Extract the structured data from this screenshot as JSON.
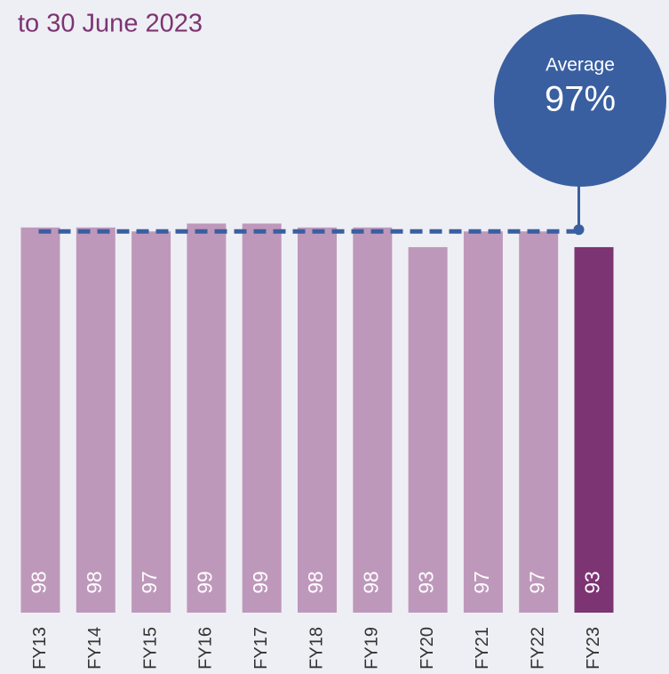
{
  "chart_data": {
    "type": "bar",
    "title": "to 30 June 2023",
    "categories": [
      "FY13",
      "FY14",
      "FY15",
      "FY16",
      "FY17",
      "FY18",
      "FY19",
      "FY20",
      "FY21",
      "FY22",
      "FY23"
    ],
    "values": [
      98,
      98,
      97,
      99,
      99,
      98,
      98,
      93,
      97,
      97,
      93
    ],
    "colors": [
      "#be98bb",
      "#be98bb",
      "#be98bb",
      "#be98bb",
      "#be98bb",
      "#be98bb",
      "#be98bb",
      "#be98bb",
      "#be98bb",
      "#be98bb",
      "#7d3473"
    ],
    "ylim": [
      0,
      100
    ],
    "average": {
      "label": "Average",
      "value": 97,
      "value_label": "97%",
      "color": "#3a5fa0"
    }
  }
}
